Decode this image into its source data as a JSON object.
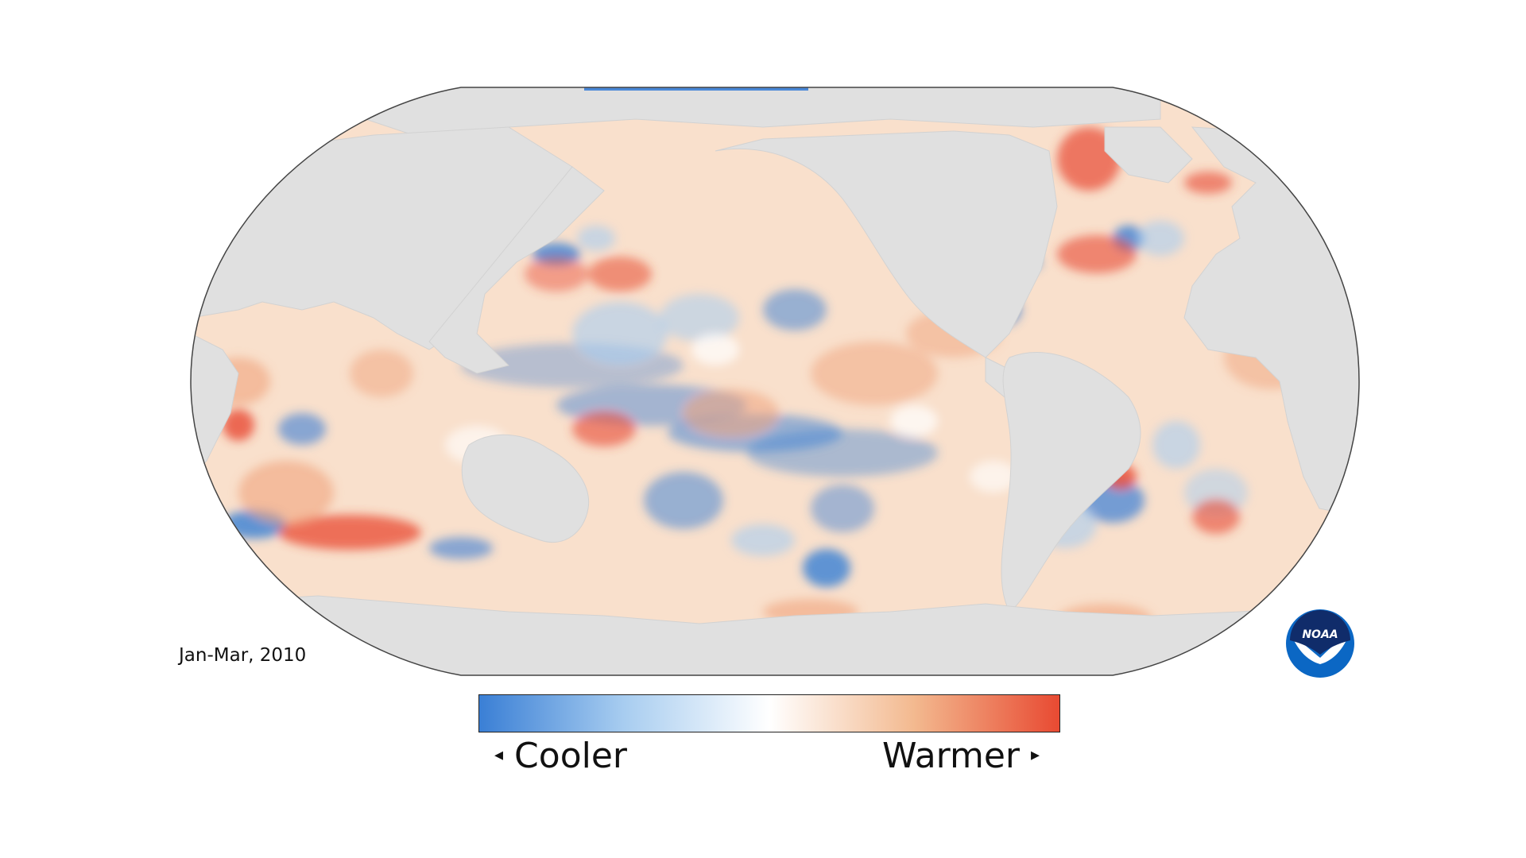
{
  "map": {
    "period": "Jan-Mar, 2010",
    "colors": {
      "ocean_base": "#f8ddc8",
      "land": "#e0e0e0",
      "outline": "#444444",
      "cool": "#3a7fd5",
      "warm": "#e84a32",
      "neutral": "#ffffff"
    }
  },
  "legend": {
    "cool_label": "Cooler",
    "warm_label": "Warmer",
    "left_arrow": "◂",
    "right_arrow": "▸",
    "gradient": [
      "#3a7fd5",
      "#a8cdf0",
      "#ffffff",
      "#f3b98f",
      "#e84a32"
    ]
  },
  "logo": {
    "text": "NOAA",
    "color": "#0b67c4"
  }
}
